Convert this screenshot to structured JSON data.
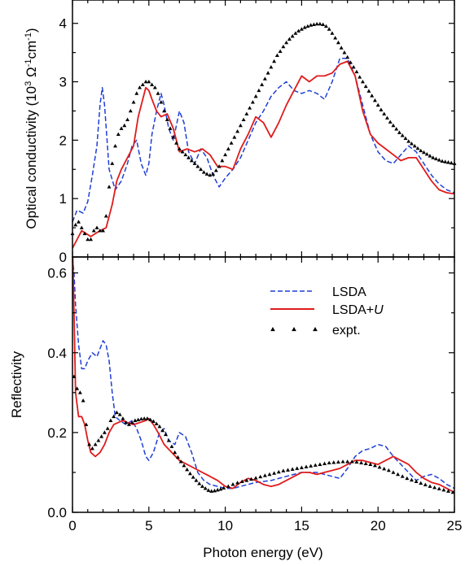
{
  "colors": {
    "lsda": "#1f3fd6",
    "lsda_u": "#e01b1b",
    "expt": "#000000"
  },
  "chart_data": [
    {
      "type": "line",
      "panel": "top",
      "xlabel": "Photon energy (eV)",
      "ylabel_main": "Optical conductivity (10",
      "ylabel_exp1": "3",
      "ylabel_mid": " Ω",
      "ylabel_exp2": "-1",
      "ylabel_mid2": "cm",
      "ylabel_exp3": "-1",
      "ylabel_end": ")",
      "xlim": [
        0,
        25
      ],
      "ylim": [
        0,
        4.4
      ],
      "xticks": [
        0,
        5,
        10,
        15,
        20,
        25
      ],
      "yticks": [
        0,
        1,
        2,
        3,
        4
      ],
      "ytick_labels": [
        "0",
        "1",
        "2",
        "3",
        "4"
      ],
      "series": [
        {
          "name": "LSDA",
          "style": "dashed",
          "x": [
            0,
            0.3,
            0.7,
            1.0,
            1.3,
            1.6,
            1.8,
            1.95,
            2.1,
            2.4,
            2.8,
            3.2,
            3.6,
            3.9,
            4.2,
            4.5,
            4.8,
            5.0,
            5.2,
            5.5,
            5.8,
            6.0,
            6.3,
            6.6,
            7.0,
            7.3,
            7.6,
            8.0,
            8.4,
            8.8,
            9.2,
            9.6,
            10.0,
            10.5,
            11.0,
            11.5,
            12.0,
            12.5,
            13.0,
            13.5,
            14.0,
            14.5,
            15.0,
            15.5,
            16.0,
            16.5,
            17.0,
            17.5,
            18.0,
            18.5,
            19.0,
            19.5,
            20.0,
            20.5,
            21.0,
            21.5,
            22.0,
            22.5,
            23.0,
            23.5,
            24.0,
            24.5,
            25.0
          ],
          "y": [
            0.6,
            0.8,
            0.75,
            0.95,
            1.4,
            1.9,
            2.6,
            2.9,
            2.6,
            1.5,
            1.15,
            1.3,
            1.6,
            1.9,
            2.0,
            1.6,
            1.4,
            1.6,
            2.1,
            2.5,
            2.8,
            2.6,
            2.2,
            2.0,
            2.5,
            2.3,
            1.8,
            1.6,
            1.85,
            1.7,
            1.4,
            1.2,
            1.35,
            1.5,
            1.7,
            2.0,
            2.3,
            2.5,
            2.75,
            2.9,
            3.0,
            2.85,
            2.8,
            2.85,
            2.8,
            2.7,
            3.0,
            3.4,
            3.4,
            3.1,
            2.6,
            2.1,
            1.8,
            1.65,
            1.6,
            1.75,
            1.9,
            1.8,
            1.6,
            1.4,
            1.25,
            1.15,
            1.1
          ]
        },
        {
          "name": "LSDA+U",
          "style": "solid",
          "x": [
            0,
            0.3,
            0.6,
            0.9,
            1.2,
            1.5,
            1.8,
            2.2,
            2.6,
            2.9,
            3.2,
            3.6,
            4.0,
            4.3,
            4.6,
            4.8,
            5.0,
            5.2,
            5.5,
            5.8,
            6.2,
            6.6,
            7.0,
            7.5,
            8.0,
            8.5,
            9.0,
            9.5,
            10.0,
            10.5,
            11.0,
            11.5,
            12.0,
            12.5,
            13.0,
            13.5,
            14.0,
            14.5,
            15.0,
            15.5,
            16.0,
            16.5,
            17.0,
            17.5,
            18.0,
            18.5,
            19.0,
            19.5,
            20.0,
            20.5,
            21.0,
            21.5,
            22.0,
            22.5,
            23.0,
            23.5,
            24.0,
            24.5,
            25.0
          ],
          "y": [
            0.15,
            0.3,
            0.45,
            0.4,
            0.35,
            0.4,
            0.45,
            0.5,
            0.9,
            1.3,
            1.5,
            1.7,
            1.9,
            2.4,
            2.7,
            2.9,
            2.85,
            2.7,
            2.5,
            2.4,
            2.45,
            2.2,
            1.8,
            1.85,
            1.8,
            1.85,
            1.75,
            1.55,
            1.55,
            1.5,
            1.85,
            2.1,
            2.4,
            2.3,
            2.05,
            2.3,
            2.6,
            2.85,
            3.1,
            3.0,
            3.1,
            3.1,
            3.15,
            3.3,
            3.35,
            3.1,
            2.5,
            2.1,
            1.95,
            1.85,
            1.75,
            1.65,
            1.7,
            1.7,
            1.5,
            1.3,
            1.15,
            1.1,
            1.08
          ]
        },
        {
          "name": "expt.",
          "style": "markers",
          "x": [
            0,
            0.2,
            0.4,
            0.6,
            0.8,
            1.0,
            1.2,
            1.4,
            1.6,
            1.8,
            2.0,
            2.2,
            2.4,
            2.6,
            2.8,
            3.0,
            3.2,
            3.4,
            3.6,
            3.8,
            4.0,
            4.2,
            4.4,
            4.6,
            4.8,
            5.0,
            5.2,
            5.4,
            5.6,
            5.8,
            6.0,
            6.2,
            6.4,
            6.6,
            6.8,
            7.0,
            7.2,
            7.4,
            7.6,
            7.8,
            8.0,
            8.2,
            8.4,
            8.6,
            8.8,
            9.0,
            9.2,
            9.4,
            9.6,
            9.8,
            10.0,
            10.2,
            10.4,
            10.6,
            10.8,
            11.0,
            11.2,
            11.4,
            11.6,
            11.8,
            12.0,
            12.2,
            12.4,
            12.6,
            12.8,
            13.0,
            13.2,
            13.4,
            13.6,
            13.8,
            14.0,
            14.2,
            14.4,
            14.6,
            14.8,
            15.0,
            15.2,
            15.4,
            15.6,
            15.8,
            16.0,
            16.2,
            16.4,
            16.6,
            16.8,
            17.0,
            17.2,
            17.4,
            17.6,
            17.8,
            18.0,
            18.2,
            18.4,
            18.6,
            18.8,
            19.0,
            19.2,
            19.4,
            19.6,
            19.8,
            20.0,
            20.2,
            20.4,
            20.6,
            20.8,
            21.0,
            21.2,
            21.4,
            21.6,
            21.8,
            22.0,
            22.2,
            22.4,
            22.6,
            22.8,
            23.0,
            23.2,
            23.4,
            23.6,
            23.8,
            24.0,
            24.2,
            24.4,
            24.6,
            24.8,
            25.0
          ],
          "y": [
            0.4,
            0.55,
            0.6,
            0.5,
            0.4,
            0.3,
            0.3,
            0.45,
            0.5,
            0.45,
            0.45,
            0.7,
            1.2,
            1.6,
            1.9,
            2.1,
            2.2,
            2.25,
            2.35,
            2.5,
            2.65,
            2.8,
            2.9,
            2.95,
            3.0,
            3.0,
            2.95,
            2.9,
            2.8,
            2.65,
            2.5,
            2.35,
            2.2,
            2.05,
            1.95,
            1.85,
            1.8,
            1.75,
            1.7,
            1.65,
            1.6,
            1.55,
            1.5,
            1.45,
            1.42,
            1.4,
            1.42,
            1.48,
            1.55,
            1.65,
            1.75,
            1.85,
            1.95,
            2.05,
            2.15,
            2.25,
            2.35,
            2.45,
            2.55,
            2.65,
            2.75,
            2.85,
            2.95,
            3.05,
            3.15,
            3.25,
            3.35,
            3.45,
            3.52,
            3.6,
            3.67,
            3.73,
            3.78,
            3.83,
            3.87,
            3.9,
            3.93,
            3.95,
            3.97,
            3.98,
            3.99,
            3.99,
            3.98,
            3.95,
            3.9,
            3.83,
            3.75,
            3.67,
            3.58,
            3.5,
            3.42,
            3.33,
            3.25,
            3.17,
            3.08,
            3.0,
            2.92,
            2.84,
            2.76,
            2.68,
            2.6,
            2.52,
            2.45,
            2.38,
            2.31,
            2.25,
            2.19,
            2.13,
            2.08,
            2.03,
            1.98,
            1.94,
            1.9,
            1.86,
            1.82,
            1.79,
            1.76,
            1.73,
            1.7,
            1.68,
            1.66,
            1.64,
            1.63,
            1.62,
            1.61,
            1.6
          ]
        }
      ]
    },
    {
      "type": "line",
      "panel": "bottom",
      "xlabel": "Photon energy (eV)",
      "ylabel": "Reflectivity",
      "xlim": [
        0,
        25
      ],
      "ylim": [
        0,
        0.64
      ],
      "xticks": [
        0,
        5,
        10,
        15,
        20,
        25
      ],
      "xtick_labels": [
        "0",
        "5",
        "10",
        "15",
        "20",
        "25"
      ],
      "yticks": [
        0,
        0.2,
        0.4,
        0.6
      ],
      "ytick_labels": [
        "0.0",
        "0.2",
        "0.4",
        "0.6"
      ],
      "legend": {
        "placement": "upper-right",
        "entries": [
          {
            "series": "LSDA",
            "label": "LSDA",
            "italic_suffix": ""
          },
          {
            "series": "LSDA+U",
            "label": "LSDA+",
            "italic_suffix": "U"
          },
          {
            "series": "expt.",
            "label": "expt.",
            "italic_suffix": ""
          }
        ]
      },
      "series": [
        {
          "name": "LSDA",
          "style": "dashed",
          "x": [
            0.05,
            0.1,
            0.2,
            0.4,
            0.6,
            0.8,
            1.0,
            1.3,
            1.6,
            1.8,
            2.0,
            2.2,
            2.4,
            2.6,
            2.8,
            3.1,
            3.5,
            3.9,
            4.2,
            4.5,
            4.8,
            5.0,
            5.3,
            5.7,
            6.0,
            6.3,
            6.7,
            7.0,
            7.4,
            7.8,
            8.2,
            8.6,
            9.0,
            9.5,
            10.0,
            10.5,
            11.0,
            11.5,
            12.0,
            13.0,
            14.0,
            15.0,
            16.0,
            16.5,
            17.0,
            17.5,
            18.0,
            18.5,
            19.0,
            19.5,
            20.0,
            20.5,
            21.0,
            21.5,
            22.0,
            22.5,
            23.0,
            23.5,
            24.0,
            24.5,
            25.0
          ],
          "y": [
            0.62,
            0.6,
            0.52,
            0.42,
            0.36,
            0.36,
            0.38,
            0.4,
            0.39,
            0.41,
            0.43,
            0.42,
            0.38,
            0.3,
            0.24,
            0.23,
            0.22,
            0.23,
            0.21,
            0.18,
            0.14,
            0.13,
            0.15,
            0.2,
            0.21,
            0.18,
            0.17,
            0.2,
            0.19,
            0.15,
            0.1,
            0.08,
            0.07,
            0.065,
            0.06,
            0.06,
            0.065,
            0.07,
            0.075,
            0.08,
            0.09,
            0.1,
            0.1,
            0.095,
            0.09,
            0.085,
            0.11,
            0.14,
            0.155,
            0.16,
            0.17,
            0.165,
            0.14,
            0.12,
            0.1,
            0.08,
            0.09,
            0.095,
            0.085,
            0.07,
            0.06
          ]
        },
        {
          "name": "LSDA+U",
          "style": "solid",
          "x": [
            0.02,
            0.1,
            0.2,
            0.4,
            0.6,
            0.8,
            1.0,
            1.2,
            1.5,
            1.8,
            2.1,
            2.4,
            2.7,
            3.0,
            3.3,
            3.6,
            4.0,
            4.4,
            4.8,
            5.0,
            5.3,
            5.6,
            6.0,
            6.5,
            7.0,
            7.5,
            8.0,
            8.5,
            9.0,
            9.5,
            10.0,
            10.5,
            11.0,
            11.5,
            12.0,
            12.5,
            13.0,
            13.5,
            14.0,
            15.0,
            15.5,
            16.0,
            16.5,
            17.0,
            17.5,
            18.0,
            18.5,
            19.0,
            19.5,
            20.0,
            20.5,
            21.0,
            21.5,
            22.0,
            22.5,
            23.0,
            23.5,
            24.0,
            24.5,
            25.0
          ],
          "y": [
            0.64,
            0.5,
            0.3,
            0.24,
            0.24,
            0.22,
            0.18,
            0.15,
            0.14,
            0.15,
            0.17,
            0.2,
            0.22,
            0.225,
            0.23,
            0.225,
            0.22,
            0.225,
            0.23,
            0.235,
            0.22,
            0.2,
            0.17,
            0.15,
            0.13,
            0.12,
            0.11,
            0.1,
            0.09,
            0.08,
            0.065,
            0.06,
            0.075,
            0.085,
            0.08,
            0.07,
            0.065,
            0.07,
            0.08,
            0.1,
            0.1,
            0.095,
            0.1,
            0.105,
            0.11,
            0.12,
            0.13,
            0.13,
            0.125,
            0.12,
            0.13,
            0.14,
            0.13,
            0.12,
            0.1,
            0.085,
            0.075,
            0.07,
            0.06,
            0.05
          ]
        },
        {
          "name": "expt.",
          "style": "markers",
          "x": [
            0.1,
            0.3,
            0.5,
            0.7,
            0.9,
            1.1,
            1.3,
            1.5,
            1.7,
            1.9,
            2.1,
            2.3,
            2.5,
            2.7,
            2.9,
            3.1,
            3.3,
            3.5,
            3.7,
            3.9,
            4.1,
            4.3,
            4.5,
            4.7,
            4.9,
            5.1,
            5.3,
            5.5,
            5.7,
            5.9,
            6.1,
            6.3,
            6.5,
            6.7,
            6.9,
            7.1,
            7.3,
            7.5,
            7.7,
            7.9,
            8.1,
            8.3,
            8.5,
            8.7,
            8.9,
            9.1,
            9.3,
            9.5,
            9.7,
            9.9,
            10.2,
            10.5,
            10.8,
            11.1,
            11.4,
            11.7,
            12.0,
            12.3,
            12.6,
            12.9,
            13.2,
            13.5,
            13.8,
            14.1,
            14.4,
            14.7,
            15.0,
            15.3,
            15.6,
            15.9,
            16.2,
            16.5,
            16.8,
            17.1,
            17.4,
            17.7,
            18.0,
            18.3,
            18.6,
            18.9,
            19.2,
            19.5,
            19.8,
            20.1,
            20.4,
            20.7,
            21.0,
            21.3,
            21.6,
            21.9,
            22.2,
            22.5,
            22.8,
            23.1,
            23.4,
            23.7,
            24.0,
            24.3,
            24.6,
            24.9
          ],
          "y": [
            0.34,
            0.31,
            0.3,
            0.28,
            0.22,
            0.17,
            0.16,
            0.17,
            0.18,
            0.19,
            0.2,
            0.21,
            0.23,
            0.24,
            0.25,
            0.245,
            0.235,
            0.225,
            0.22,
            0.225,
            0.23,
            0.232,
            0.234,
            0.235,
            0.235,
            0.232,
            0.228,
            0.222,
            0.215,
            0.205,
            0.195,
            0.18,
            0.165,
            0.15,
            0.138,
            0.127,
            0.117,
            0.107,
            0.097,
            0.088,
            0.08,
            0.072,
            0.065,
            0.06,
            0.055,
            0.053,
            0.054,
            0.056,
            0.058,
            0.061,
            0.065,
            0.07,
            0.074,
            0.077,
            0.08,
            0.083,
            0.086,
            0.089,
            0.092,
            0.095,
            0.098,
            0.101,
            0.104,
            0.106,
            0.108,
            0.11,
            0.112,
            0.114,
            0.116,
            0.118,
            0.12,
            0.122,
            0.124,
            0.125,
            0.126,
            0.127,
            0.127,
            0.127,
            0.126,
            0.124,
            0.122,
            0.12,
            0.117,
            0.113,
            0.109,
            0.105,
            0.1,
            0.095,
            0.09,
            0.085,
            0.081,
            0.077,
            0.073,
            0.069,
            0.065,
            0.062,
            0.059,
            0.056,
            0.053,
            0.05
          ]
        }
      ]
    }
  ]
}
